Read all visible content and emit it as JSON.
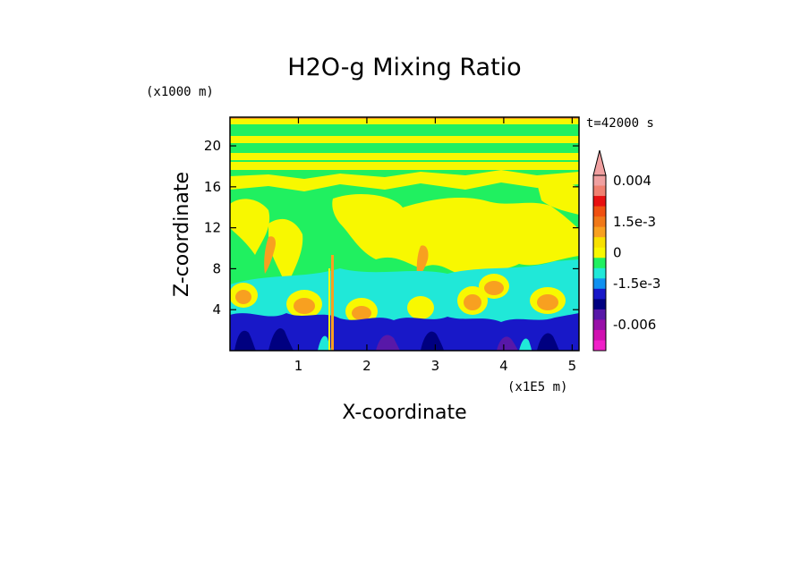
{
  "chart_data": {
    "type": "heatmap",
    "title": "H2O-g Mixing Ratio",
    "xlabel": "X-coordinate",
    "ylabel": "Z-coordinate",
    "x_unit": "(x1E5 m)",
    "y_unit": "(x1000 m)",
    "time_label": "t=42000 s",
    "xlim": [
      0,
      5.1
    ],
    "ylim": [
      0,
      22.8
    ],
    "x_ticks": [
      1,
      2,
      3,
      4,
      5
    ],
    "y_ticks": [
      4,
      8,
      12,
      16,
      20
    ],
    "x_tick_labels": [
      "1",
      "2",
      "3",
      "4",
      "5"
    ],
    "y_tick_labels": [
      "4",
      "8",
      "12",
      "16",
      "20"
    ],
    "layers": [
      {
        "z_range": [
          0,
          3.0
        ],
        "dominant_level": "below -1.5e-3",
        "note": "dark blue / purple plumes near surface"
      },
      {
        "z_range": [
          3.0,
          6.0
        ],
        "dominant_level": "orange and yellow blobs",
        "note": "positive anomalies at plume tops"
      },
      {
        "z_range": [
          6.0,
          8.5
        ],
        "dominant_level": "cyan",
        "note": "slightly negative"
      },
      {
        "z_range": [
          8.5,
          18.5
        ],
        "dominant_level": "green and yellow",
        "note": "near zero with positive patches"
      },
      {
        "z_range": [
          18.5,
          22.8
        ],
        "dominant_level": "yellow and green bands",
        "note": "stratified layers"
      }
    ],
    "colorbar": {
      "levels": [
        {
          "color": "#f0a0a0"
        },
        {
          "color": "#f08070"
        },
        {
          "color": "#e81010"
        },
        {
          "color": "#f05010"
        },
        {
          "color": "#f07818"
        },
        {
          "color": "#f8a020"
        },
        {
          "color": "#f8e000"
        },
        {
          "color": "#f8f800"
        },
        {
          "color": "#20f060"
        },
        {
          "color": "#20e8d8"
        },
        {
          "color": "#1090f0"
        },
        {
          "color": "#1818c8"
        },
        {
          "color": "#000080"
        },
        {
          "color": "#5818a8"
        },
        {
          "color": "#9810a8"
        },
        {
          "color": "#d010b0"
        },
        {
          "color": "#f020c8"
        }
      ],
      "labels": [
        "0.004",
        "1.5e-3",
        "0",
        "-1.5e-3",
        "-0.006"
      ],
      "extend": "max"
    }
  }
}
